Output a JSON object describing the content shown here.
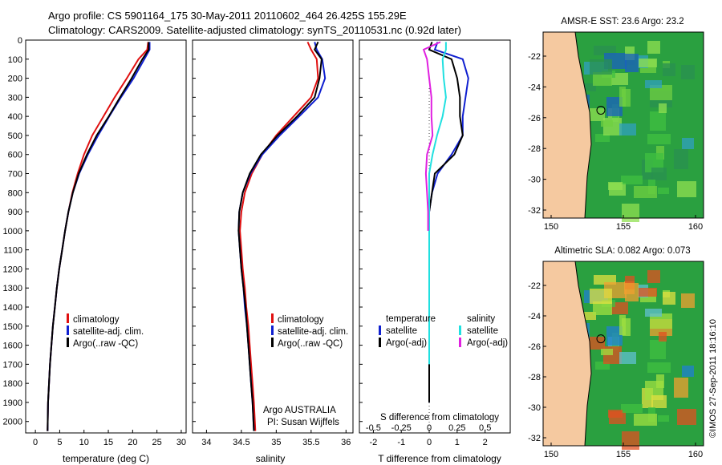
{
  "header": {
    "title_line1": "Argo profile: CS 5901164_175 30-May-2011 20110602_464 26.425S 155.29E",
    "title_line2": "Climatology: CARS2009. Satellite-adjusted climatology: synTS_20110531.nc (0.92d later)"
  },
  "panels": {
    "temperature": {
      "xlabel": "temperature (deg C)",
      "xticks": [
        "0",
        "5",
        "10",
        "15",
        "20",
        "25",
        "30"
      ],
      "legend": [
        "climatology",
        "satellite-adj. clim.",
        "Argo(..raw -QC)"
      ]
    },
    "salinity": {
      "xlabel": "salinity",
      "xticks": [
        "34",
        "34.5",
        "35",
        "35.5",
        "36"
      ],
      "legend": [
        "climatology",
        "satellite-adj. clim.",
        "Argo(..raw -QC)"
      ],
      "note_line1": "Argo AUSTRALIA",
      "note_line2": "PI: Susan Wijffels"
    },
    "difference": {
      "xlabel_bottom": "T difference from climatology",
      "xlabel_top": "S difference from climatology",
      "xticks_T": [
        "-2",
        "-1",
        "0",
        "1",
        "2"
      ],
      "xticks_S": [
        "-0.5",
        "-0.25",
        "0",
        "0.25",
        "0.5"
      ],
      "legend_temp_title": "temperature",
      "legend_sal_title": "salinity",
      "legend_temp": [
        "satellite",
        "Argo(-adj)"
      ],
      "legend_sal": [
        "satellite",
        "Argo(-adj)"
      ]
    }
  },
  "depth_ticks": [
    "0",
    "100",
    "200",
    "300",
    "400",
    "500",
    "600",
    "700",
    "800",
    "900",
    "1000",
    "1100",
    "1200",
    "1300",
    "1400",
    "1500",
    "1600",
    "1700",
    "1800",
    "1900",
    "2000"
  ],
  "maps": {
    "sst_title": "AMSR-E SST: 23.6 Argo: 23.2",
    "sla_title": "Altimetric SLA: 0.082 Argo: 0.073",
    "lat_ticks": [
      "-22",
      "-24",
      "-26",
      "-28",
      "-30",
      "-32"
    ],
    "lon_ticks": [
      "150",
      "155",
      "160"
    ]
  },
  "stamp": "©IMOS 27-Sep-2011 18:16:10",
  "colors": {
    "clim": "#e01010",
    "sat": "#1020d0",
    "argo": "#000000",
    "cyan": "#20e0e0",
    "magenta": "#e020e0",
    "land": "#f5c9a0"
  },
  "chart_data": [
    {
      "type": "line",
      "title": "",
      "xlabel": "temperature (deg C)",
      "ylabel": "",
      "xlim": [
        -2,
        31
      ],
      "ylim": [
        2060,
        0
      ],
      "series": [
        {
          "name": "climatology",
          "x": [
            23.2,
            23.0,
            21.2,
            18.8,
            16.3,
            14.0,
            11.7,
            10.0,
            8.7,
            7.6,
            6.8,
            6.1,
            5.5,
            4.9,
            4.4,
            4.0,
            3.6,
            3.3,
            3.0,
            2.8,
            2.6,
            2.5
          ],
          "y": [
            10,
            50,
            100,
            200,
            300,
            400,
            500,
            600,
            700,
            800,
            900,
            1000,
            1100,
            1200,
            1300,
            1400,
            1500,
            1600,
            1700,
            1800,
            1900,
            2050
          ]
        },
        {
          "name": "satellite-adj. clim.",
          "x": [
            23.5,
            23.5,
            22.4,
            20.2,
            17.6,
            15.2,
            12.9,
            10.8,
            9.0,
            7.7,
            6.8,
            6.1,
            5.5,
            4.9,
            4.4,
            4.0,
            3.6,
            3.3,
            3.0,
            2.8,
            2.6,
            2.5
          ],
          "y": [
            10,
            50,
            100,
            200,
            300,
            400,
            500,
            600,
            700,
            800,
            900,
            1000,
            1100,
            1200,
            1300,
            1400,
            1500,
            1600,
            1700,
            1800,
            1900,
            2050
          ]
        },
        {
          "name": "Argo(..raw -QC)",
          "x": [
            23.3,
            23.3,
            22.0,
            19.8,
            17.4,
            15.1,
            12.6,
            10.6,
            8.9,
            7.7,
            6.8,
            6.1,
            5.5,
            4.9,
            4.4,
            4.0,
            3.6,
            3.3,
            3.0,
            2.8,
            2.6,
            2.5
          ],
          "y": [
            10,
            50,
            100,
            200,
            300,
            400,
            500,
            600,
            700,
            800,
            900,
            1000,
            1100,
            1200,
            1300,
            1400,
            1500,
            1600,
            1700,
            1800,
            1900,
            2050
          ]
        }
      ]
    },
    {
      "type": "line",
      "title": "",
      "xlabel": "salinity",
      "ylabel": "",
      "xlim": [
        33.8,
        36.1
      ],
      "ylim": [
        2060,
        0
      ],
      "series": [
        {
          "name": "climatology",
          "x": [
            35.45,
            35.5,
            35.58,
            35.6,
            35.5,
            35.25,
            35.0,
            34.8,
            34.65,
            34.55,
            34.5,
            34.48,
            34.5,
            34.52,
            34.55,
            34.57,
            34.6,
            34.62,
            34.64,
            34.66,
            34.68,
            34.7
          ],
          "y": [
            10,
            50,
            100,
            200,
            300,
            400,
            500,
            600,
            700,
            800,
            900,
            1000,
            1100,
            1200,
            1300,
            1400,
            1500,
            1600,
            1700,
            1800,
            1900,
            2050
          ]
        },
        {
          "name": "satellite-adj. clim.",
          "x": [
            35.55,
            35.58,
            35.66,
            35.7,
            35.6,
            35.33,
            35.05,
            34.8,
            34.63,
            34.52,
            34.47,
            34.46,
            34.48,
            34.5,
            34.53,
            34.55,
            34.58,
            34.6,
            34.62,
            34.64,
            34.66,
            34.68
          ],
          "y": [
            10,
            50,
            100,
            200,
            300,
            400,
            500,
            600,
            700,
            800,
            900,
            1000,
            1100,
            1200,
            1300,
            1400,
            1500,
            1600,
            1700,
            1800,
            1900,
            2050
          ]
        },
        {
          "name": "Argo(..raw -QC)",
          "x": [
            35.6,
            35.55,
            35.65,
            35.62,
            35.55,
            35.3,
            35.02,
            34.78,
            34.62,
            34.52,
            34.47,
            34.46,
            34.48,
            34.5,
            34.53,
            34.56,
            34.58,
            34.6,
            34.62,
            34.64,
            34.66,
            34.68
          ],
          "y": [
            10,
            50,
            100,
            200,
            300,
            400,
            500,
            600,
            700,
            800,
            900,
            1000,
            1100,
            1200,
            1300,
            1400,
            1500,
            1600,
            1700,
            1800,
            1900,
            2050
          ]
        }
      ]
    },
    {
      "type": "line",
      "title": "",
      "xlabel": "T difference from climatology",
      "ylabel": "",
      "xlim": [
        -2.5,
        2.9
      ],
      "ylim": [
        2060,
        0
      ],
      "series": [
        {
          "name": "temperature satellite",
          "x": [
            0.3,
            0.2,
            1.2,
            1.4,
            1.3,
            1.2,
            1.2,
            0.8,
            0.3,
            0.1,
            0.0,
            0.0,
            0.0,
            0.0,
            0.0,
            0.0,
            0.0,
            0.0,
            0.0,
            0.0,
            0.0
          ],
          "y": [
            10,
            50,
            100,
            200,
            300,
            400,
            500,
            600,
            700,
            800,
            900,
            1000,
            1100,
            1200,
            1300,
            1400,
            1500,
            1600,
            1700,
            1800,
            1900
          ]
        },
        {
          "name": "temperature Argo(-adj)",
          "x": [
            0.1,
            0.0,
            0.8,
            1.0,
            1.1,
            1.1,
            1.2,
            0.9,
            0.2,
            0.1,
            0.0,
            0.0,
            0.0,
            0.0,
            0.0,
            0.0,
            0.0,
            0.0,
            0.0,
            0.0,
            0.0
          ],
          "y": [
            10,
            50,
            100,
            200,
            300,
            400,
            500,
            600,
            700,
            800,
            900,
            1000,
            1100,
            1200,
            1300,
            1400,
            1500,
            1600,
            1700,
            1800,
            1900
          ]
        },
        {
          "name": "salinity satellite",
          "x": [
            0.15,
            0.15,
            0.12,
            0.13,
            0.15,
            0.12,
            0.07,
            0.03,
            0.0,
            0.0,
            0.0,
            0.0,
            0.0,
            0.0,
            0.0,
            0.0,
            0.0,
            0.0,
            0.0
          ],
          "y": [
            10,
            50,
            100,
            200,
            300,
            400,
            500,
            600,
            700,
            800,
            900,
            1000,
            1100,
            1200,
            1300,
            1400,
            1500,
            1600,
            1700
          ],
          "axis": "S difference from climatology"
        },
        {
          "name": "salinity Argo(-adj)",
          "x": [
            0.1,
            -0.05,
            -0.02,
            0.0,
            0.02,
            0.02,
            0.03,
            -0.02,
            -0.03,
            -0.02,
            -0.01,
            -0.01
          ],
          "y": [
            10,
            50,
            100,
            200,
            300,
            400,
            500,
            600,
            700,
            800,
            900,
            1000
          ],
          "axis": "S difference from climatology"
        }
      ]
    }
  ]
}
